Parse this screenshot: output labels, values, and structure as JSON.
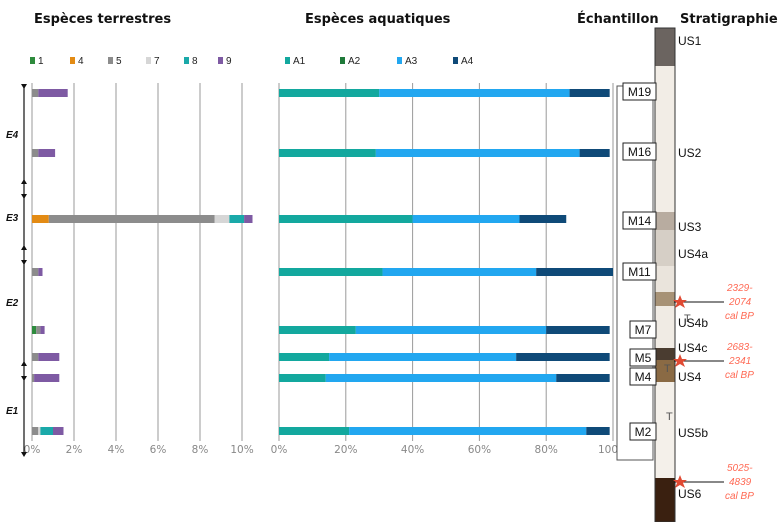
{
  "headers": {
    "terrestrial": "Espèces terrestres",
    "aquatic": "Espèces aquatiques",
    "sample": "Échantillon",
    "stratigraphy": "Stratigraphie"
  },
  "colors": {
    "t1": "#2e8b3d",
    "t4": "#e38b14",
    "t5": "#8c8c8c",
    "t7": "#d6d6d6",
    "t8": "#1aa9a9",
    "t9": "#7e5aa3",
    "A1": "#13a89e",
    "A2": "#1f7a3a",
    "A3": "#22a7f0",
    "A4": "#0f4a78"
  },
  "chart_data": [
    {
      "type": "bar",
      "stacked": true,
      "orientation": "horizontal",
      "title": "Espèces terrestres",
      "xlim": [
        0,
        10
      ],
      "xticks": [
        "0%",
        "2%",
        "4%",
        "6%",
        "8%",
        "10%"
      ],
      "grid": true,
      "categories": [
        "M19",
        "M16",
        "M14",
        "M11",
        "M7",
        "M5",
        "M4",
        "M2"
      ],
      "series": [
        {
          "name": "1",
          "values": [
            0.0,
            0.0,
            0.0,
            0.0,
            0.2,
            0.0,
            0.0,
            0.0
          ]
        },
        {
          "name": "4",
          "values": [
            0.0,
            0.0,
            0.8,
            0.0,
            0.0,
            0.0,
            0.0,
            0.0
          ]
        },
        {
          "name": "5",
          "values": [
            0.3,
            0.3,
            7.9,
            0.3,
            0.2,
            0.3,
            0.1,
            0.3
          ]
        },
        {
          "name": "7",
          "values": [
            0.0,
            0.0,
            0.7,
            0.0,
            0.0,
            0.0,
            0.0,
            0.1
          ]
        },
        {
          "name": "8",
          "values": [
            0.0,
            0.0,
            0.7,
            0.0,
            0.0,
            0.0,
            0.0,
            0.6
          ]
        },
        {
          "name": "9",
          "values": [
            1.4,
            0.8,
            0.4,
            0.2,
            0.2,
            1.0,
            1.2,
            0.5
          ]
        }
      ]
    },
    {
      "type": "bar",
      "stacked": true,
      "orientation": "horizontal",
      "title": "Espèces aquatiques",
      "xlim": [
        0,
        100
      ],
      "xticks": [
        "0%",
        "20%",
        "40%",
        "60%",
        "80%",
        "100%"
      ],
      "grid": true,
      "categories": [
        "M19",
        "M16",
        "M14",
        "M11",
        "M7",
        "M5",
        "M4",
        "M2"
      ],
      "series": [
        {
          "name": "A1",
          "values": [
            30,
            29,
            40,
            31,
            23,
            15,
            14,
            21
          ]
        },
        {
          "name": "A2",
          "values": [
            0,
            0,
            0,
            0,
            0,
            0,
            0,
            0
          ]
        },
        {
          "name": "A3",
          "values": [
            57,
            61,
            32,
            46,
            57,
            56,
            69,
            71
          ]
        },
        {
          "name": "A4",
          "values": [
            12,
            9,
            14,
            23,
            19,
            28,
            16,
            7
          ]
        }
      ]
    }
  ],
  "zones": [
    "E4",
    "E3",
    "E2",
    "E1"
  ],
  "samples": [
    "M19",
    "M16",
    "M14",
    "M11",
    "M7",
    "M5",
    "M4",
    "M2"
  ],
  "strat_units": [
    "US1",
    "US2",
    "US3",
    "US4a",
    "US4b",
    "US4c",
    "US4",
    "US5b",
    "US6"
  ],
  "dates": [
    {
      "l1": "2329-",
      "l2": "2074",
      "l3": "cal BP"
    },
    {
      "l1": "2683-",
      "l2": "2341",
      "l3": "cal BP"
    },
    {
      "l1": "5025-",
      "l2": "4839",
      "l3": "cal BP"
    }
  ]
}
